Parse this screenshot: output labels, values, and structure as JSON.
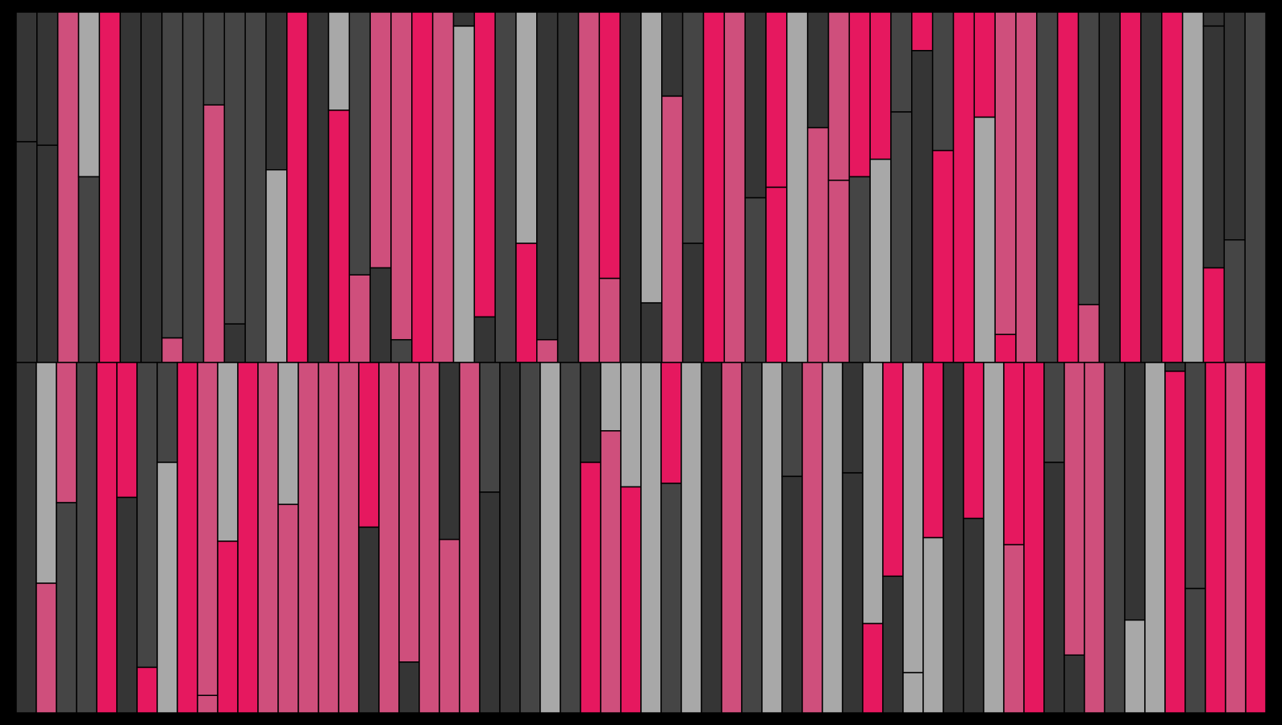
{
  "palette": {
    "background": "#000000",
    "dark": "#353535",
    "mid": "#454545",
    "light": "#a8a8a8",
    "pink": "#cf4f7c",
    "red": "#e6185f"
  },
  "panels": [
    {
      "name": "top-panel",
      "columns": [
        [
          {
            "c": "dark",
            "f": 0.37
          },
          {
            "c": "dark",
            "f": 0.63
          }
        ],
        [
          {
            "c": "dark",
            "f": 0.38
          },
          {
            "c": "dark",
            "f": 0.62
          }
        ],
        [
          {
            "c": "pink",
            "f": 1
          }
        ],
        [
          {
            "c": "light",
            "f": 0.47
          },
          {
            "c": "mid",
            "f": 0.53
          }
        ],
        [
          {
            "c": "red",
            "f": 1
          }
        ],
        [
          {
            "c": "dark",
            "f": 1
          }
        ],
        [
          {
            "c": "dark",
            "f": 1
          }
        ],
        [
          {
            "c": "mid",
            "f": 0.93
          },
          {
            "c": "pink",
            "f": 0.07
          }
        ],
        [
          {
            "c": "mid",
            "f": 1
          }
        ],
        [
          {
            "c": "mid",
            "f": 0.265
          },
          {
            "c": "pink",
            "f": 0.735
          }
        ],
        [
          {
            "c": "mid",
            "f": 0.89
          },
          {
            "c": "dark",
            "f": 0.11
          }
        ],
        [
          {
            "c": "mid",
            "f": 1
          }
        ],
        [
          {
            "c": "dark",
            "f": 0.45
          },
          {
            "c": "light",
            "f": 0.55
          }
        ],
        [
          {
            "c": "red",
            "f": 1
          }
        ],
        [
          {
            "c": "dark",
            "f": 1
          }
        ],
        [
          {
            "c": "light",
            "f": 0.28
          },
          {
            "c": "red",
            "f": 0.72
          }
        ],
        [
          {
            "c": "mid",
            "f": 0.75
          },
          {
            "c": "pink",
            "f": 0.25
          }
        ],
        [
          {
            "c": "pink",
            "f": 0.73
          },
          {
            "c": "dark",
            "f": 0.27
          }
        ],
        [
          {
            "c": "pink",
            "f": 0.935
          },
          {
            "c": "mid",
            "f": 0.065
          }
        ],
        [
          {
            "c": "red",
            "f": 1
          }
        ],
        [
          {
            "c": "pink",
            "f": 1
          }
        ],
        [
          {
            "c": "dark",
            "f": 0.04
          },
          {
            "c": "light",
            "f": 0.96
          }
        ],
        [
          {
            "c": "red",
            "f": 0.87
          },
          {
            "c": "dark",
            "f": 0.13
          }
        ],
        [
          {
            "c": "mid",
            "f": 1
          }
        ],
        [
          {
            "c": "light",
            "f": 0.66
          },
          {
            "c": "red",
            "f": 0.34
          }
        ],
        [
          {
            "c": "dark",
            "f": 0.935
          },
          {
            "c": "pink",
            "f": 0.065
          }
        ],
        [
          {
            "c": "dark",
            "f": 1
          }
        ],
        [
          {
            "c": "pink",
            "f": 1
          }
        ],
        [
          {
            "c": "red",
            "f": 0.76
          },
          {
            "c": "pink",
            "f": 0.24
          }
        ],
        [
          {
            "c": "dark",
            "f": 1
          }
        ],
        [
          {
            "c": "light",
            "f": 0.83
          },
          {
            "c": "dark",
            "f": 0.17
          }
        ],
        [
          {
            "c": "dark",
            "f": 0.24
          },
          {
            "c": "pink",
            "f": 0.76
          }
        ],
        [
          {
            "c": "mid",
            "f": 0.66
          },
          {
            "c": "dark",
            "f": 0.34
          }
        ],
        [
          {
            "c": "red",
            "f": 1
          }
        ],
        [
          {
            "c": "pink",
            "f": 1
          }
        ],
        [
          {
            "c": "dark",
            "f": 0.53
          },
          {
            "c": "mid",
            "f": 0.47
          }
        ],
        [
          {
            "c": "red",
            "f": 0.5
          },
          {
            "c": "red",
            "f": 0.5
          }
        ],
        [
          {
            "c": "light",
            "f": 1
          }
        ],
        [
          {
            "c": "dark",
            "f": 0.33
          },
          {
            "c": "pink",
            "f": 0.67
          }
        ],
        [
          {
            "c": "pink",
            "f": 0.48
          },
          {
            "c": "pink",
            "f": 0.52
          }
        ],
        [
          {
            "c": "red",
            "f": 0.47
          },
          {
            "c": "mid",
            "f": 0.53
          }
        ],
        [
          {
            "c": "red",
            "f": 0.42
          },
          {
            "c": "light",
            "f": 0.58
          }
        ],
        [
          {
            "c": "mid",
            "f": 0.285
          },
          {
            "c": "mid",
            "f": 0.715
          }
        ],
        [
          {
            "c": "red",
            "f": 0.11
          },
          {
            "c": "dark",
            "f": 0.89
          }
        ],
        [
          {
            "c": "mid",
            "f": 0.395
          },
          {
            "c": "red",
            "f": 0.605
          }
        ],
        [
          {
            "c": "red",
            "f": 1
          }
        ],
        [
          {
            "c": "red",
            "f": 0.3
          },
          {
            "c": "light",
            "f": 0.7
          }
        ],
        [
          {
            "c": "pink",
            "f": 0.92
          },
          {
            "c": "red",
            "f": 0.08
          }
        ],
        [
          {
            "c": "pink",
            "f": 1
          }
        ],
        [
          {
            "c": "mid",
            "f": 1
          }
        ],
        [
          {
            "c": "red",
            "f": 1
          }
        ],
        [
          {
            "c": "mid",
            "f": 0.835
          },
          {
            "c": "pink",
            "f": 0.165
          }
        ],
        [
          {
            "c": "dark",
            "f": 1
          }
        ],
        [
          {
            "c": "red",
            "f": 1
          }
        ],
        [
          {
            "c": "dark",
            "f": 1
          }
        ],
        [
          {
            "c": "red",
            "f": 1
          }
        ],
        [
          {
            "c": "light",
            "f": 1
          }
        ],
        [
          {
            "c": "dark",
            "f": 0.04
          },
          {
            "c": "dark",
            "f": 0.69
          },
          {
            "c": "red",
            "f": 0.27
          }
        ],
        [
          {
            "c": "dark",
            "f": 0.65
          },
          {
            "c": "mid",
            "f": 0.35
          }
        ],
        [
          {
            "c": "mid",
            "f": 1
          }
        ]
      ]
    },
    {
      "name": "bottom-panel",
      "columns": [
        [
          {
            "c": "dark",
            "f": 1
          }
        ],
        [
          {
            "c": "light",
            "f": 0.63
          },
          {
            "c": "pink",
            "f": 0.37
          }
        ],
        [
          {
            "c": "pink",
            "f": 0.4
          },
          {
            "c": "mid",
            "f": 0.6
          }
        ],
        [
          {
            "c": "mid",
            "f": 1
          }
        ],
        [
          {
            "c": "red",
            "f": 1
          }
        ],
        [
          {
            "c": "red",
            "f": 0.385
          },
          {
            "c": "dark",
            "f": 0.615
          }
        ],
        [
          {
            "c": "mid",
            "f": 0.87
          },
          {
            "c": "red",
            "f": 0.13
          }
        ],
        [
          {
            "c": "mid",
            "f": 0.285
          },
          {
            "c": "light",
            "f": 0.715
          }
        ],
        [
          {
            "c": "red",
            "f": 1
          }
        ],
        [
          {
            "c": "pink",
            "f": 0.95
          },
          {
            "c": "pink",
            "f": 0.05
          }
        ],
        [
          {
            "c": "light",
            "f": 0.51
          },
          {
            "c": "red",
            "f": 0.49
          }
        ],
        [
          {
            "c": "red",
            "f": 1
          }
        ],
        [
          {
            "c": "pink",
            "f": 1
          }
        ],
        [
          {
            "c": "light",
            "f": 0.405
          },
          {
            "c": "pink",
            "f": 0.595
          }
        ],
        [
          {
            "c": "pink",
            "f": 1
          }
        ],
        [
          {
            "c": "pink",
            "f": 1
          }
        ],
        [
          {
            "c": "pink",
            "f": 1
          }
        ],
        [
          {
            "c": "red",
            "f": 0.47
          },
          {
            "c": "dark",
            "f": 0.53
          }
        ],
        [
          {
            "c": "pink",
            "f": 1
          }
        ],
        [
          {
            "c": "pink",
            "f": 0.855
          },
          {
            "c": "dark",
            "f": 0.145
          }
        ],
        [
          {
            "c": "pink",
            "f": 1
          }
        ],
        [
          {
            "c": "dark",
            "f": 0.505
          },
          {
            "c": "pink",
            "f": 0.495
          }
        ],
        [
          {
            "c": "pink",
            "f": 1
          }
        ],
        [
          {
            "c": "mid",
            "f": 0.37
          },
          {
            "c": "dark",
            "f": 0.63
          }
        ],
        [
          {
            "c": "dark",
            "f": 1
          }
        ],
        [
          {
            "c": "mid",
            "f": 1
          }
        ],
        [
          {
            "c": "light",
            "f": 1
          }
        ],
        [
          {
            "c": "mid",
            "f": 1
          }
        ],
        [
          {
            "c": "dark",
            "f": 0.285
          },
          {
            "c": "red",
            "f": 0.715
          }
        ],
        [
          {
            "c": "light",
            "f": 0.195
          },
          {
            "c": "pink",
            "f": 0.805
          }
        ],
        [
          {
            "c": "light",
            "f": 0.355
          },
          {
            "c": "red",
            "f": 0.645
          }
        ],
        [
          {
            "c": "light",
            "f": 1
          }
        ],
        [
          {
            "c": "red",
            "f": 0.345
          },
          {
            "c": "mid",
            "f": 0.655
          }
        ],
        [
          {
            "c": "light",
            "f": 1
          }
        ],
        [
          {
            "c": "dark",
            "f": 1
          }
        ],
        [
          {
            "c": "pink",
            "f": 1
          }
        ],
        [
          {
            "c": "mid",
            "f": 1
          }
        ],
        [
          {
            "c": "light",
            "f": 1
          }
        ],
        [
          {
            "c": "mid",
            "f": 0.325
          },
          {
            "c": "dark",
            "f": 0.675
          }
        ],
        [
          {
            "c": "pink",
            "f": 1
          }
        ],
        [
          {
            "c": "light",
            "f": 1
          }
        ],
        [
          {
            "c": "dark",
            "f": 0.315
          },
          {
            "c": "dark",
            "f": 0.685
          }
        ],
        [
          {
            "c": "light",
            "f": 0.745
          },
          {
            "c": "red",
            "f": 0.255
          }
        ],
        [
          {
            "c": "red",
            "f": 0.61
          },
          {
            "c": "dark",
            "f": 0.39
          }
        ],
        [
          {
            "c": "light",
            "f": 0.885
          },
          {
            "c": "light",
            "f": 0.115
          }
        ],
        [
          {
            "c": "red",
            "f": 0.5
          },
          {
            "c": "light",
            "f": 0.5
          }
        ],
        [
          {
            "c": "dark",
            "f": 1
          }
        ],
        [
          {
            "c": "red",
            "f": 0.445
          },
          {
            "c": "dark",
            "f": 0.555
          }
        ],
        [
          {
            "c": "light",
            "f": 1
          }
        ],
        [
          {
            "c": "red",
            "f": 0.52
          },
          {
            "c": "pink",
            "f": 0.48
          }
        ],
        [
          {
            "c": "red",
            "f": 1
          }
        ],
        [
          {
            "c": "mid",
            "f": 0.285
          },
          {
            "c": "dark",
            "f": 0.715
          }
        ],
        [
          {
            "c": "pink",
            "f": 0.835
          },
          {
            "c": "dark",
            "f": 0.165
          }
        ],
        [
          {
            "c": "pink",
            "f": 1
          }
        ],
        [
          {
            "c": "mid",
            "f": 1
          }
        ],
        [
          {
            "c": "dark",
            "f": 0.735
          },
          {
            "c": "light",
            "f": 0.265
          }
        ],
        [
          {
            "c": "light",
            "f": 1
          }
        ],
        [
          {
            "c": "dark",
            "f": 0.025
          },
          {
            "c": "red",
            "f": 0.975
          }
        ],
        [
          {
            "c": "mid",
            "f": 0.645
          },
          {
            "c": "mid",
            "f": 0.355
          }
        ],
        [
          {
            "c": "red",
            "f": 1
          }
        ],
        [
          {
            "c": "pink",
            "f": 1
          }
        ],
        [
          {
            "c": "red",
            "f": 1
          }
        ]
      ]
    }
  ]
}
